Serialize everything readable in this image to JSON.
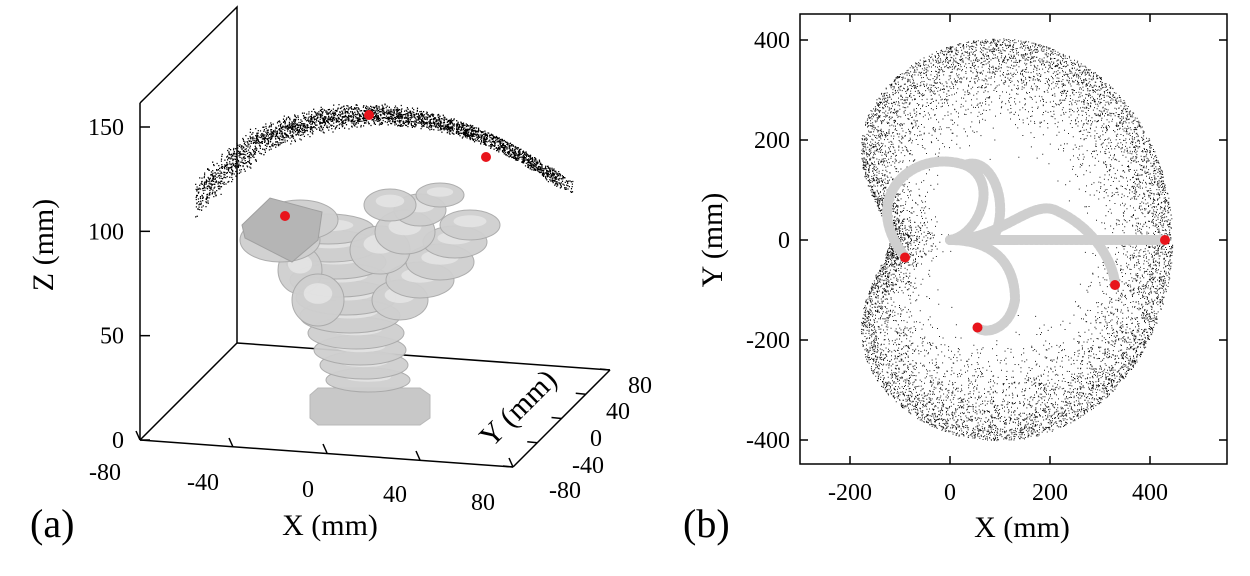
{
  "figure": {
    "panels": [
      {
        "id": "a",
        "panel_label": "(a)",
        "type": "scatter3d",
        "xlabel": "X (mm)",
        "ylabel": "Y (mm)",
        "zlabel": "Z (mm)",
        "x_ticks": [
          "-80",
          "-40",
          "0",
          "40",
          "80"
        ],
        "y_ticks": [
          "-80",
          "-40",
          "0",
          "40",
          "80"
        ],
        "z_ticks": [
          "0",
          "50",
          "100",
          "150"
        ],
        "xlim": [
          -80,
          80
        ],
        "ylim": [
          -80,
          80
        ],
        "zlim": [
          0,
          170
        ]
      },
      {
        "id": "b",
        "panel_label": "(b)",
        "type": "scatter",
        "xlabel": "X (mm)",
        "ylabel": "Y (mm)",
        "x_ticks": [
          "-200",
          "0",
          "200",
          "400"
        ],
        "y_ticks": [
          "400",
          "200",
          "0",
          "-200",
          "-400"
        ],
        "xlim": [
          -300,
          550
        ],
        "ylim": [
          -450,
          450
        ]
      }
    ]
  },
  "chart_data": [
    {
      "type": "scatter",
      "panel": "a",
      "title": "",
      "xlabel": "X (mm)",
      "ylabel": "Y (mm)",
      "zlabel": "Z (mm)",
      "xlim": [
        -80,
        80
      ],
      "ylim": [
        -80,
        80
      ],
      "zlim": [
        0,
        170
      ],
      "grid": false,
      "series": [
        {
          "name": "workspace points",
          "color": "#000000",
          "description_surface": "dome cap z approx 100-160"
        },
        {
          "name": "highlighted tip positions",
          "color": "#e8141b",
          "points": [
            {
              "x": 0,
              "y": 20,
              "z": 155
            },
            {
              "x": 40,
              "y": 50,
              "z": 135
            },
            {
              "x": -45,
              "y": -20,
              "z": 105
            }
          ]
        }
      ],
      "robot_color": "#cfcfcf"
    },
    {
      "type": "scatter",
      "panel": "b",
      "title": "",
      "xlabel": "X (mm)",
      "ylabel": "Y (mm)",
      "xlim": [
        -300,
        550
      ],
      "ylim": [
        -450,
        450
      ],
      "grid": false,
      "series": [
        {
          "name": "workspace points (top view)",
          "color": "#000000"
        },
        {
          "name": "highlighted tip positions",
          "color": "#e8141b",
          "x": [
            430,
            330,
            55,
            -90
          ],
          "y": [
            0,
            -90,
            -175,
            -35
          ]
        }
      ],
      "robot_color": "#cfcfcf"
    }
  ]
}
